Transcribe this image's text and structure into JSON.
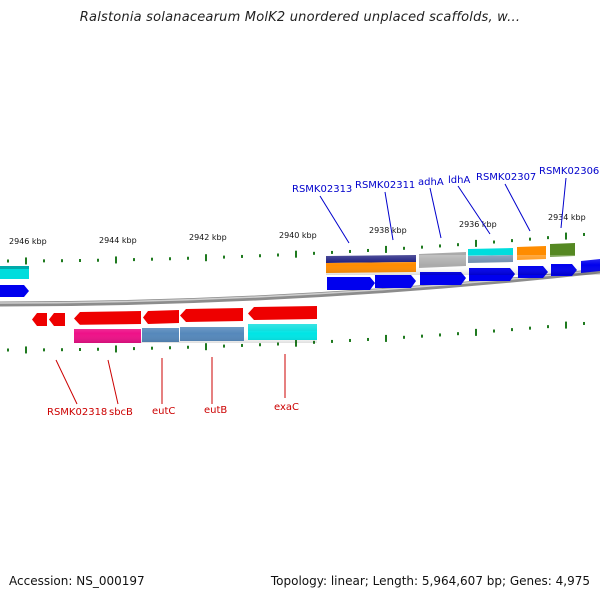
{
  "title": "Ralstonia solanacearum MolK2 unordered unplaced scaffolds, w...",
  "footer": {
    "accession": "Accession: NS_000197",
    "summary": "Topology: linear; Length: 5,964,607 bp; Genes: 4,975"
  },
  "colors": {
    "backbone": "#8c8c8c",
    "tick": "#1f7a1f",
    "label_top": "#0000cc",
    "label_bottom": "#cc0000",
    "blue_gene": "#0000ee",
    "red_gene": "#ee0000"
  },
  "kbp_labels": [
    "2946 kbp",
    "2944 kbp",
    "2942 kbp",
    "2940 kbp",
    "2938 kbp",
    "2936 kbp",
    "2934 kbp"
  ],
  "top_gene_labels": [
    "RSMK02313",
    "RSMK02311",
    "adhA",
    "ldhA",
    "RSMK02307",
    "RSMK02306"
  ],
  "bottom_gene_labels": [
    "RSMK02318",
    "sbcB",
    "eutC",
    "eutB",
    "exaC"
  ]
}
